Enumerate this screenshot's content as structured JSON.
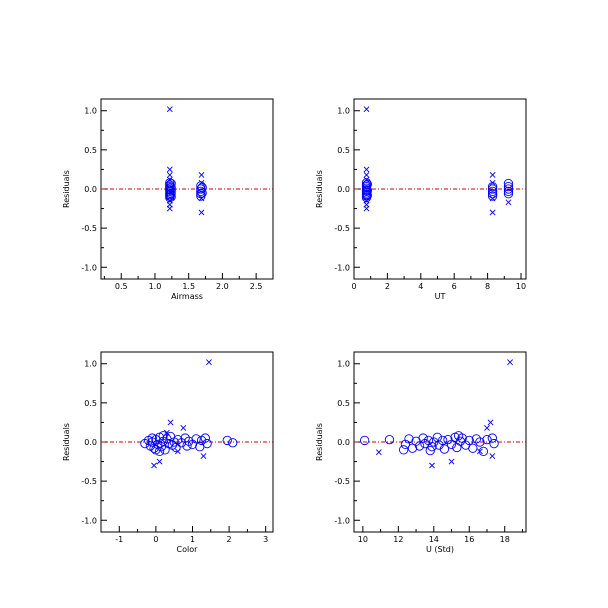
{
  "figure": {
    "background": "#ffffff",
    "marker_color": "#0000ff",
    "zero_line_color": "#cc0000",
    "axis_color": "#000000"
  },
  "chart_data": [
    {
      "id": "airmass",
      "type": "scatter",
      "xlabel": "Airmass",
      "ylabel": "Residuals",
      "xlim": [
        0.2,
        2.75
      ],
      "ylim": [
        -1.15,
        1.15
      ],
      "xticks": [
        0.5,
        1.0,
        1.5,
        2.0,
        2.5
      ],
      "xtick_labels": [
        "0.5",
        "1.0",
        "1.5",
        "2.0",
        "2.5"
      ],
      "xminor": [
        0.25,
        0.75,
        1.25,
        1.75,
        2.25,
        2.75
      ],
      "yticks": [
        -1.0,
        -0.5,
        0.0,
        0.5,
        1.0
      ],
      "ytick_labels": [
        "-1.0",
        "-0.5",
        "0.0",
        "0.5",
        "1.0"
      ],
      "yminor": [
        -0.75,
        -0.25,
        0.25,
        0.75
      ],
      "zero_line": 0,
      "series": [
        {
          "marker": "o",
          "points": [
            [
              1.22,
              0.08
            ],
            [
              1.22,
              0.05
            ],
            [
              1.22,
              0.03
            ],
            [
              1.22,
              0.01
            ],
            [
              1.22,
              -0.01
            ],
            [
              1.22,
              -0.03
            ],
            [
              1.22,
              -0.05
            ],
            [
              1.22,
              -0.07
            ],
            [
              1.22,
              -0.09
            ],
            [
              1.22,
              -0.11
            ],
            [
              1.24,
              0.07
            ],
            [
              1.24,
              0.02
            ],
            [
              1.24,
              -0.02
            ],
            [
              1.24,
              -0.06
            ],
            [
              1.24,
              -0.1
            ],
            [
              1.68,
              0.04
            ],
            [
              1.68,
              0.0
            ],
            [
              1.68,
              -0.03
            ],
            [
              1.68,
              -0.06
            ],
            [
              1.68,
              -0.09
            ],
            [
              1.7,
              0.02
            ],
            [
              1.7,
              -0.05
            ]
          ]
        },
        {
          "marker": "x",
          "points": [
            [
              1.22,
              1.02
            ],
            [
              1.22,
              0.25
            ],
            [
              1.22,
              0.18
            ],
            [
              1.22,
              0.12
            ],
            [
              1.22,
              -0.15
            ],
            [
              1.22,
              -0.2
            ],
            [
              1.22,
              -0.25
            ],
            [
              1.69,
              0.18
            ],
            [
              1.69,
              0.08
            ],
            [
              1.69,
              -0.12
            ],
            [
              1.69,
              -0.3
            ]
          ]
        }
      ]
    },
    {
      "id": "ut",
      "type": "scatter",
      "xlabel": "UT",
      "ylabel": "Residuals",
      "xlim": [
        0,
        10.3
      ],
      "ylim": [
        -1.15,
        1.15
      ],
      "xticks": [
        0,
        2,
        4,
        6,
        8,
        10
      ],
      "xtick_labels": [
        "0",
        "2",
        "4",
        "6",
        "8",
        "10"
      ],
      "xminor": [
        1,
        3,
        5,
        7,
        9
      ],
      "yticks": [
        -1.0,
        -0.5,
        0.0,
        0.5,
        1.0
      ],
      "ytick_labels": [
        "-1.0",
        "-0.5",
        "0.0",
        "0.5",
        "1.0"
      ],
      "yminor": [
        -0.75,
        -0.25,
        0.25,
        0.75
      ],
      "zero_line": 0,
      "series": [
        {
          "marker": "o",
          "points": [
            [
              0.75,
              0.08
            ],
            [
              0.75,
              0.05
            ],
            [
              0.75,
              0.03
            ],
            [
              0.75,
              0.01
            ],
            [
              0.75,
              -0.01
            ],
            [
              0.75,
              -0.03
            ],
            [
              0.75,
              -0.05
            ],
            [
              0.75,
              -0.07
            ],
            [
              0.75,
              -0.09
            ],
            [
              0.75,
              -0.11
            ],
            [
              0.8,
              0.06
            ],
            [
              0.8,
              -0.02
            ],
            [
              0.8,
              -0.08
            ],
            [
              8.3,
              0.03
            ],
            [
              8.3,
              0.0
            ],
            [
              8.3,
              -0.03
            ],
            [
              8.3,
              -0.06
            ],
            [
              8.3,
              -0.09
            ],
            [
              9.25,
              0.07
            ],
            [
              9.25,
              0.03
            ],
            [
              9.25,
              0.0
            ],
            [
              9.25,
              -0.03
            ],
            [
              9.25,
              -0.06
            ]
          ]
        },
        {
          "marker": "x",
          "points": [
            [
              0.75,
              1.02
            ],
            [
              0.75,
              0.25
            ],
            [
              0.75,
              0.18
            ],
            [
              0.75,
              0.12
            ],
            [
              0.75,
              -0.15
            ],
            [
              0.75,
              -0.2
            ],
            [
              0.75,
              -0.25
            ],
            [
              8.3,
              0.18
            ],
            [
              8.3,
              0.08
            ],
            [
              8.3,
              -0.12
            ],
            [
              8.3,
              -0.3
            ],
            [
              9.25,
              -0.17
            ]
          ]
        }
      ]
    },
    {
      "id": "color",
      "type": "scatter",
      "xlabel": "Color",
      "ylabel": "Residuals",
      "xlim": [
        -1.5,
        3.2
      ],
      "ylim": [
        -1.15,
        1.15
      ],
      "xticks": [
        -1,
        0,
        1,
        2,
        3
      ],
      "xtick_labels": [
        "-1",
        "0",
        "1",
        "2",
        "3"
      ],
      "xminor": [
        -0.5,
        0.5,
        1.5,
        2.5
      ],
      "yticks": [
        -1.0,
        -0.5,
        0.0,
        0.5,
        1.0
      ],
      "ytick_labels": [
        "-1.0",
        "-0.5",
        "0.0",
        "0.5",
        "1.0"
      ],
      "yminor": [
        -0.75,
        -0.25,
        0.25,
        0.75
      ],
      "zero_line": 0,
      "series": [
        {
          "marker": "o",
          "points": [
            [
              -0.3,
              -0.02
            ],
            [
              -0.2,
              0.02
            ],
            [
              -0.15,
              -0.05
            ],
            [
              -0.1,
              0.0
            ],
            [
              -0.05,
              -0.08
            ],
            [
              0.0,
              0.03
            ],
            [
              0.05,
              -0.03
            ],
            [
              0.1,
              0.06
            ],
            [
              0.15,
              -0.06
            ],
            [
              0.2,
              0.01
            ],
            [
              0.25,
              -0.1
            ],
            [
              0.3,
              0.04
            ],
            [
              0.35,
              -0.02
            ],
            [
              0.4,
              0.07
            ],
            [
              0.45,
              -0.04
            ],
            [
              0.5,
              0.0
            ],
            [
              0.55,
              -0.07
            ],
            [
              0.6,
              0.03
            ],
            [
              0.7,
              -0.01
            ],
            [
              0.8,
              0.05
            ],
            [
              0.85,
              -0.05
            ],
            [
              0.9,
              0.01
            ],
            [
              1.0,
              -0.03
            ],
            [
              1.1,
              0.04
            ],
            [
              1.2,
              -0.06
            ],
            [
              1.25,
              0.02
            ],
            [
              1.35,
              0.05
            ],
            [
              1.4,
              -0.02
            ],
            [
              1.95,
              0.02
            ],
            [
              2.1,
              -0.01
            ],
            [
              0.0,
              -0.1
            ],
            [
              0.1,
              -0.12
            ],
            [
              0.2,
              0.08
            ],
            [
              -0.1,
              0.05
            ]
          ]
        },
        {
          "marker": "x",
          "points": [
            [
              1.45,
              1.02
            ],
            [
              0.4,
              0.25
            ],
            [
              0.75,
              0.18
            ],
            [
              0.3,
              0.12
            ],
            [
              1.3,
              -0.18
            ],
            [
              0.1,
              -0.25
            ],
            [
              -0.05,
              -0.3
            ],
            [
              0.6,
              -0.12
            ]
          ]
        }
      ]
    },
    {
      "id": "u_std",
      "type": "scatter",
      "xlabel": "U (Std)",
      "ylabel": "Residuals",
      "xlim": [
        9.5,
        19.2
      ],
      "ylim": [
        -1.15,
        1.15
      ],
      "xticks": [
        10,
        12,
        14,
        16,
        18
      ],
      "xtick_labels": [
        "10",
        "12",
        "14",
        "16",
        "18"
      ],
      "xminor": [
        11,
        13,
        15,
        17,
        19
      ],
      "yticks": [
        -1.0,
        -0.5,
        0.0,
        0.5,
        1.0
      ],
      "ytick_labels": [
        "-1.0",
        "-0.5",
        "0.0",
        "0.5",
        "1.0"
      ],
      "yminor": [
        -0.75,
        -0.25,
        0.25,
        0.75
      ],
      "zero_line": 0,
      "series": [
        {
          "marker": "o",
          "points": [
            [
              10.1,
              0.02
            ],
            [
              11.5,
              0.03
            ],
            [
              12.4,
              -0.03
            ],
            [
              12.6,
              0.04
            ],
            [
              12.8,
              -0.08
            ],
            [
              13.0,
              0.01
            ],
            [
              13.2,
              -0.05
            ],
            [
              13.4,
              0.05
            ],
            [
              13.5,
              -0.02
            ],
            [
              13.7,
              0.02
            ],
            [
              13.9,
              -0.06
            ],
            [
              14.0,
              0.0
            ],
            [
              14.2,
              0.06
            ],
            [
              14.3,
              -0.04
            ],
            [
              14.5,
              0.02
            ],
            [
              14.6,
              -0.09
            ],
            [
              14.8,
              0.03
            ],
            [
              15.0,
              -0.03
            ],
            [
              15.2,
              0.06
            ],
            [
              15.3,
              -0.07
            ],
            [
              15.5,
              0.01
            ],
            [
              15.6,
              0.05
            ],
            [
              15.8,
              -0.04
            ],
            [
              16.0,
              0.02
            ],
            [
              16.2,
              -0.08
            ],
            [
              16.4,
              0.04
            ],
            [
              16.6,
              0.0
            ],
            [
              16.8,
              -0.12
            ],
            [
              17.0,
              0.03
            ],
            [
              17.3,
              0.05
            ],
            [
              17.4,
              -0.02
            ],
            [
              12.3,
              -0.1
            ],
            [
              13.8,
              -0.11
            ],
            [
              15.4,
              0.08
            ]
          ]
        },
        {
          "marker": "x",
          "points": [
            [
              18.3,
              1.02
            ],
            [
              17.2,
              0.25
            ],
            [
              17.0,
              0.18
            ],
            [
              10.9,
              -0.13
            ],
            [
              13.9,
              -0.3
            ],
            [
              15.0,
              -0.25
            ],
            [
              17.3,
              -0.18
            ],
            [
              16.6,
              -0.12
            ]
          ]
        }
      ]
    }
  ]
}
